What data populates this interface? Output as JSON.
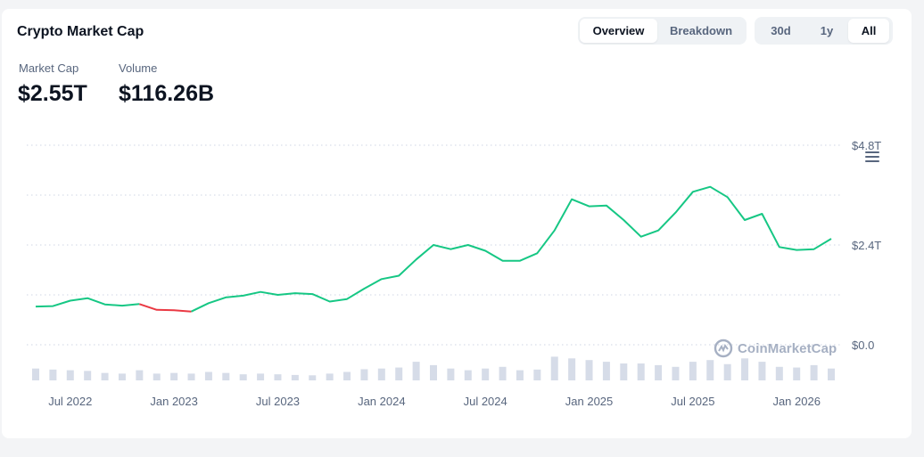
{
  "header": {
    "title": "Crypto Market Cap"
  },
  "view_tabs": [
    {
      "label": "Overview",
      "active": true
    },
    {
      "label": "Breakdown",
      "active": false
    }
  ],
  "range_tabs": [
    {
      "label": "30d",
      "active": false
    },
    {
      "label": "1y",
      "active": false
    },
    {
      "label": "All",
      "active": true
    }
  ],
  "stats": {
    "market_cap": {
      "label": "Market Cap",
      "value": "$2.55T"
    },
    "volume": {
      "label": "Volume",
      "value": "$116.26B"
    }
  },
  "watermark": {
    "text": "CoinMarketCap",
    "icon": "coinmarketcap-logo-icon"
  },
  "colors": {
    "up": "#16c784",
    "down": "#ea3943",
    "volume": "#cfd6e4",
    "grid": "#cfd6e4"
  },
  "chart_data": {
    "type": "line",
    "y_axis_labels": [
      "$4.8T",
      "$2.4T",
      "$0.0"
    ],
    "ylim": [
      0,
      4.8
    ],
    "x_tick_labels": [
      "Jul 2022",
      "Jan 2023",
      "Jul 2023",
      "Jan 2024",
      "Jul 2024",
      "Jan 2025",
      "Jul 2025",
      "Jan 2026"
    ],
    "x_tick_dates": [
      "2022-07",
      "2023-01",
      "2023-07",
      "2024-01",
      "2024-07",
      "2025-01",
      "2025-07",
      "2026-01"
    ],
    "x_start": "2022-05",
    "x_end": "2026-03",
    "market_cap_T": [
      [
        "2022-05",
        0.92
      ],
      [
        "2022-06",
        0.93
      ],
      [
        "2022-07",
        1.06
      ],
      [
        "2022-08",
        1.12
      ],
      [
        "2022-09",
        0.97
      ],
      [
        "2022-10",
        0.94
      ],
      [
        "2022-11",
        0.98
      ],
      [
        "2022-12",
        0.84
      ],
      [
        "2023-01",
        0.83
      ],
      [
        "2023-02",
        0.8
      ],
      [
        "2023-03",
        1.0
      ],
      [
        "2023-04",
        1.14
      ],
      [
        "2023-05",
        1.18
      ],
      [
        "2023-06",
        1.27
      ],
      [
        "2023-07",
        1.2
      ],
      [
        "2023-08",
        1.24
      ],
      [
        "2023-09",
        1.22
      ],
      [
        "2023-10",
        1.04
      ],
      [
        "2023-11",
        1.1
      ],
      [
        "2023-12",
        1.35
      ],
      [
        "2024-01",
        1.58
      ],
      [
        "2024-02",
        1.66
      ],
      [
        "2024-03",
        2.05
      ],
      [
        "2024-04",
        2.4
      ],
      [
        "2024-05",
        2.3
      ],
      [
        "2024-06",
        2.4
      ],
      [
        "2024-07",
        2.26
      ],
      [
        "2024-08",
        2.02
      ],
      [
        "2024-09",
        2.02
      ],
      [
        "2024-10",
        2.2
      ],
      [
        "2024-11",
        2.75
      ],
      [
        "2024-12",
        3.5
      ],
      [
        "2025-01",
        3.33
      ],
      [
        "2025-02",
        3.35
      ],
      [
        "2025-03",
        3.0
      ],
      [
        "2025-04",
        2.6
      ],
      [
        "2025-05",
        2.75
      ],
      [
        "2025-06",
        3.18
      ],
      [
        "2025-07",
        3.68
      ],
      [
        "2025-08",
        3.8
      ],
      [
        "2025-09",
        3.55
      ],
      [
        "2025-10",
        3.0
      ],
      [
        "2025-11",
        3.15
      ],
      [
        "2025-12",
        2.35
      ],
      [
        "2026-01",
        2.28
      ],
      [
        "2026-02",
        2.3
      ],
      [
        "2026-03",
        2.55
      ]
    ],
    "down_segment": [
      "2022-11",
      "2023-02"
    ],
    "volume_relative": [
      [
        "2022-05",
        0.35
      ],
      [
        "2022-06",
        0.32
      ],
      [
        "2022-07",
        0.3
      ],
      [
        "2022-08",
        0.28
      ],
      [
        "2022-09",
        0.22
      ],
      [
        "2022-10",
        0.2
      ],
      [
        "2022-11",
        0.3
      ],
      [
        "2022-12",
        0.2
      ],
      [
        "2023-01",
        0.22
      ],
      [
        "2023-02",
        0.2
      ],
      [
        "2023-03",
        0.25
      ],
      [
        "2023-04",
        0.22
      ],
      [
        "2023-05",
        0.18
      ],
      [
        "2023-06",
        0.2
      ],
      [
        "2023-07",
        0.18
      ],
      [
        "2023-08",
        0.16
      ],
      [
        "2023-09",
        0.15
      ],
      [
        "2023-10",
        0.2
      ],
      [
        "2023-11",
        0.25
      ],
      [
        "2023-12",
        0.33
      ],
      [
        "2024-01",
        0.35
      ],
      [
        "2024-02",
        0.38
      ],
      [
        "2024-03",
        0.55
      ],
      [
        "2024-04",
        0.45
      ],
      [
        "2024-05",
        0.35
      ],
      [
        "2024-06",
        0.3
      ],
      [
        "2024-07",
        0.35
      ],
      [
        "2024-08",
        0.4
      ],
      [
        "2024-09",
        0.3
      ],
      [
        "2024-10",
        0.32
      ],
      [
        "2024-11",
        0.7
      ],
      [
        "2024-12",
        0.65
      ],
      [
        "2025-01",
        0.6
      ],
      [
        "2025-02",
        0.55
      ],
      [
        "2025-03",
        0.5
      ],
      [
        "2025-04",
        0.5
      ],
      [
        "2025-05",
        0.45
      ],
      [
        "2025-06",
        0.4
      ],
      [
        "2025-07",
        0.55
      ],
      [
        "2025-08",
        0.6
      ],
      [
        "2025-09",
        0.48
      ],
      [
        "2025-10",
        0.65
      ],
      [
        "2025-11",
        0.55
      ],
      [
        "2025-12",
        0.4
      ],
      [
        "2026-01",
        0.38
      ],
      [
        "2026-02",
        0.45
      ],
      [
        "2026-03",
        0.35
      ]
    ]
  }
}
